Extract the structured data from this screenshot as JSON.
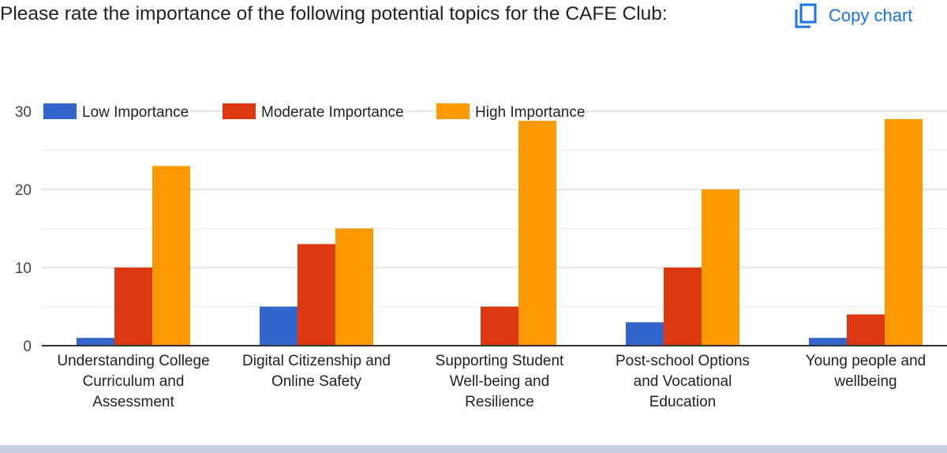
{
  "header": {
    "title": "Please rate the importance of the following potential topics for the CAFE Club:",
    "copy_label": "Copy chart",
    "copy_icon": "copy-icon",
    "accent_color": "#1a73e8"
  },
  "chart_data": {
    "type": "bar",
    "categories": [
      [
        "Understanding College",
        "Curriculum and",
        "Assessment"
      ],
      [
        "Digital Citizenship and",
        "Online Safety"
      ],
      [
        "Supporting Student",
        "Well-being and",
        "Resilience"
      ],
      [
        "Post-school Options",
        "and Vocational",
        "Education"
      ],
      [
        "Young people and",
        "wellbeing"
      ]
    ],
    "series": [
      {
        "name": "Low Importance",
        "color": "#3366cc",
        "values": [
          1,
          5,
          0,
          3,
          1
        ]
      },
      {
        "name": "Moderate Importance",
        "color": "#dc3912",
        "values": [
          10,
          13,
          5,
          10,
          4
        ]
      },
      {
        "name": "High Importance",
        "color": "#ff9900",
        "values": [
          23,
          15,
          29,
          20,
          29
        ]
      }
    ],
    "ylim": [
      0,
      30
    ],
    "yticks": [
      0,
      10,
      20,
      30
    ],
    "minor_gridlines": [
      5,
      15,
      25
    ],
    "grid": true,
    "legend_position": "top"
  }
}
